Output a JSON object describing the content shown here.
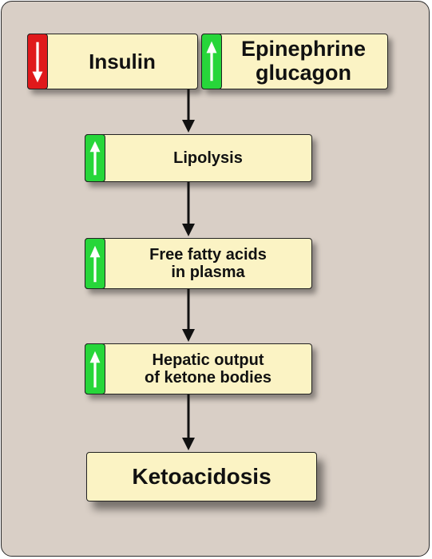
{
  "diagram": {
    "insulin": {
      "label": "Insulin",
      "direction": "down",
      "color": "#e0191b"
    },
    "hormones": {
      "line1": "Epinephrine",
      "line2": "glucagon",
      "direction": "up",
      "color": "#27d63a"
    },
    "lipolysis": {
      "label": "Lipolysis",
      "direction": "up",
      "color": "#27d63a"
    },
    "ffa": {
      "line1": "Free fatty acids",
      "line2": "in plasma",
      "direction": "up",
      "color": "#27d63a"
    },
    "hepatic": {
      "line1": "Hepatic output",
      "line2": "of ketone bodies",
      "direction": "up",
      "color": "#27d63a"
    },
    "ketoacidosis": {
      "label": "Ketoacidosis"
    }
  }
}
